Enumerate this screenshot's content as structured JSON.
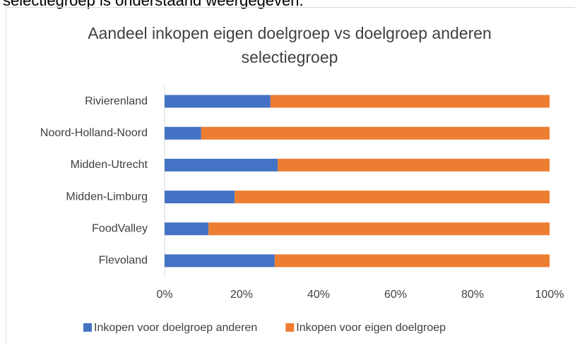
{
  "document": {
    "intro_text": "selectiegroep is onderstaand weergegeven."
  },
  "chart_data": {
    "type": "stacked_bar_horizontal",
    "title": "Aandeel inkopen eigen doelgroep vs doelgroep anderen selectiegroep",
    "categories": [
      "Rivierenland",
      "Noord-Holland-Noord",
      "Midden-Utrecht",
      "Midden-Limburg",
      "FoodValley",
      "Flevoland"
    ],
    "series": [
      {
        "name": "Inkopen voor doelgroep anderen",
        "color": "#4472c4",
        "values": [
          27.5,
          9.5,
          29.4,
          18.2,
          11.4,
          28.6
        ]
      },
      {
        "name": "Inkopen voor eigen doelgroep",
        "color": "#ed7d31",
        "values": [
          72.5,
          90.5,
          70.6,
          81.8,
          88.6,
          71.4
        ]
      }
    ],
    "xlim": [
      0,
      100
    ],
    "xticks": [
      {
        "value": 0,
        "label": "0%"
      },
      {
        "value": 20,
        "label": "20%"
      },
      {
        "value": 40,
        "label": "40%"
      },
      {
        "value": 60,
        "label": "60%"
      },
      {
        "value": 80,
        "label": "80%"
      },
      {
        "value": 100,
        "label": "100%"
      }
    ],
    "grid": false,
    "legend": "bottom"
  }
}
